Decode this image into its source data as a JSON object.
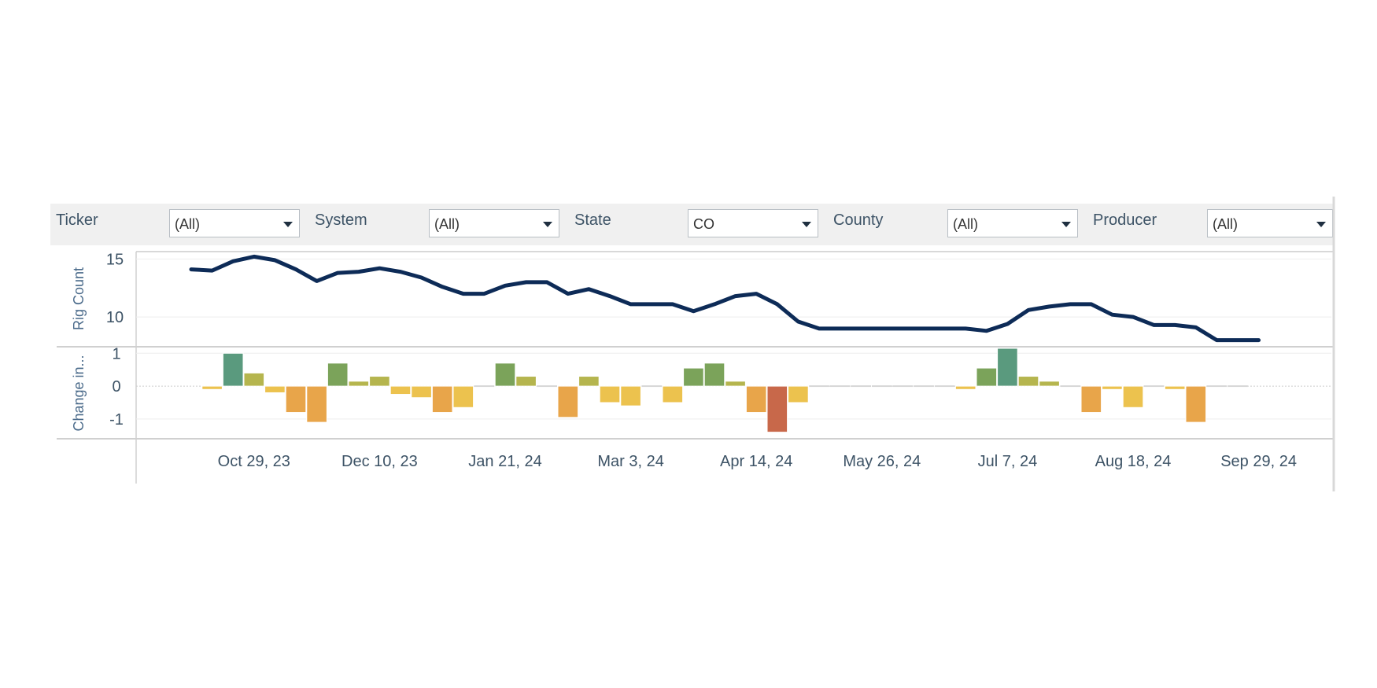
{
  "filters": [
    {
      "label": "Ticker",
      "value": "(All)"
    },
    {
      "label": "System",
      "value": "(All)"
    },
    {
      "label": "State",
      "value": "CO"
    },
    {
      "label": "County",
      "value": "(All)"
    },
    {
      "label": "Producer",
      "value": "(All)"
    }
  ],
  "chart_data": {
    "type": "line",
    "line_color": "#0d2b57",
    "x_start_date": "2023-10-08",
    "x_step_days": 7,
    "x_tick_labels": [
      "Oct 29, 23",
      "Dec 10, 23",
      "Jan 21, 24",
      "Mar 3, 24",
      "Apr 14, 24",
      "May 26, 24",
      "Jul 7, 24",
      "Aug 18, 24",
      "Sep 29, 24"
    ],
    "panels": [
      {
        "type": "line",
        "ylabel": "Rig Count",
        "yticks": [
          10,
          15
        ],
        "ylim": [
          7.5,
          15.5
        ],
        "values": [
          14.1,
          14.0,
          14.8,
          15.2,
          14.9,
          14.1,
          13.1,
          13.8,
          13.9,
          14.2,
          13.9,
          13.4,
          12.6,
          12.0,
          12.0,
          12.7,
          13.0,
          13.0,
          12.0,
          12.4,
          11.8,
          11.1,
          11.1,
          11.1,
          10.5,
          11.1,
          11.8,
          12.0,
          11.1,
          9.6,
          9.0,
          9.0,
          9.0,
          9.0,
          9.0,
          9.0,
          9.0,
          9.0,
          8.8,
          9.4,
          10.6,
          10.9,
          11.1,
          11.1,
          10.2,
          10.0,
          9.3,
          9.3,
          9.1,
          8.0,
          8.0,
          8.0
        ]
      },
      {
        "type": "bar",
        "ylabel": "Change in...",
        "yticks": [
          -1,
          0,
          1
        ],
        "ylim": [
          -1.6,
          1.15
        ],
        "values": [
          -0.1,
          1.0,
          0.4,
          -0.2,
          -0.8,
          -1.1,
          0.7,
          0.15,
          0.3,
          -0.25,
          -0.35,
          -0.8,
          -0.65,
          0.0,
          0.7,
          0.3,
          0.0,
          -0.95,
          0.3,
          -0.5,
          -0.6,
          0.0,
          -0.5,
          0.55,
          0.7,
          0.15,
          -0.8,
          -1.4,
          -0.5,
          0.0,
          0.0,
          0.0,
          0.0,
          0.0,
          0.0,
          0.0,
          -0.1,
          0.55,
          1.15,
          0.3,
          0.15,
          0.0,
          -0.8,
          -0.1,
          -0.65,
          0.0,
          -0.1,
          -1.1,
          0.0,
          0.0
        ],
        "colors": {
          "pos_high": "#5a9a7e",
          "pos_mid": "#7ba35a",
          "pos_low": "#b5b54e",
          "neg_low": "#ecc24e",
          "neg_mid": "#e8a54a",
          "neg_high": "#c8684a"
        }
      }
    ]
  }
}
